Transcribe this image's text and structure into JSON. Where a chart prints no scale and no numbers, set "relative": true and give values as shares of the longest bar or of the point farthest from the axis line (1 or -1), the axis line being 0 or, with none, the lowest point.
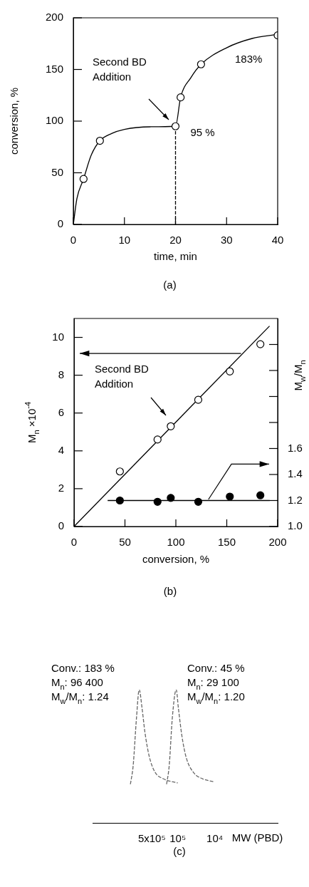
{
  "chart_data": [
    {
      "type": "scatter",
      "title": "(a)",
      "xlabel": "time, min",
      "ylabel": "conversion, %",
      "xlim": [
        0,
        40
      ],
      "xticks": [
        0,
        10,
        20,
        30,
        40
      ],
      "ylim": [
        0,
        200
      ],
      "yticks": [
        0,
        50,
        100,
        150,
        200
      ],
      "marker": "circle",
      "series": [
        {
          "type": "line",
          "marker": "none",
          "color": "#000000",
          "x": [
            0,
            0.7,
            2,
            3.5,
            5.2,
            7.5,
            10,
            15,
            20,
            21,
            23,
            25,
            30,
            35,
            40
          ],
          "values": [
            0,
            25,
            44,
            67,
            81,
            88,
            92,
            94.5,
            95,
            123,
            142,
            155,
            171,
            180,
            184
          ]
        },
        {
          "type": "line",
          "marker": "none",
          "line_style": "dashed",
          "color": "#000000",
          "x": [
            20,
            20
          ],
          "values": [
            0,
            95
          ]
        },
        {
          "color": "#ffffff",
          "x": [
            2,
            5.2,
            20,
            21,
            25,
            40
          ],
          "values": [
            44,
            81,
            95,
            123,
            155,
            183
          ]
        }
      ],
      "annotations": [
        "Second BD Addition",
        {
          "text": "95 %",
          "x": 20,
          "y": 95
        },
        {
          "text": "183%",
          "x": 40,
          "y": 183
        }
      ]
    },
    {
      "type": "scatter",
      "title": "(b)",
      "xlabel": "conversion, %",
      "ylabel": "M$_{n}$ ×10$^{-4}$",
      "y2label": "M$_{w}$/M$_{n}$",
      "xlim": [
        0,
        200
      ],
      "xticks": [
        0,
        50,
        100,
        150,
        200
      ],
      "ylim": [
        0,
        11
      ],
      "yticks": [
        0,
        2,
        4,
        6,
        8,
        10
      ],
      "y2lim": [
        1.0,
        2.6
      ],
      "y2ticks": [
        {
          "value": 1.0,
          "label": "1.0"
        },
        {
          "value": 1.2,
          "label": "1.2"
        },
        {
          "value": 1.4,
          "label": "1.4"
        },
        {
          "value": 1.6,
          "label": "1.6"
        },
        {
          "value": 1.8,
          "label": null
        },
        {
          "value": 2.0,
          "label": null
        },
        {
          "value": 2.2,
          "label": null
        },
        {
          "value": 2.4,
          "label": null
        }
      ],
      "marker": "circle",
      "series": [
        {
          "type": "line",
          "marker": "none",
          "color": "#000000",
          "x": [
            0,
            192
          ],
          "values": [
            0,
            10.6
          ]
        },
        {
          "type": "line",
          "marker": "none",
          "color": "#000000",
          "axis": "y2",
          "x": [
            33,
            192
          ],
          "values": [
            1.2,
            1.2
          ]
        },
        {
          "color": "#ffffff",
          "x": [
            45,
            82,
            95,
            122,
            153,
            183
          ],
          "values": [
            2.91,
            4.6,
            5.3,
            6.7,
            8.2,
            9.64
          ]
        },
        {
          "color": "#000000",
          "axis": "y2",
          "x": [
            45,
            82,
            95,
            122,
            153,
            183
          ],
          "values": [
            1.2,
            1.19,
            1.22,
            1.19,
            1.23,
            1.24
          ]
        }
      ],
      "annotations": [
        "Second BD Addition"
      ]
    },
    {
      "type": "line",
      "title": "(c)",
      "xlabel": "MW (PBD)",
      "relative": true,
      "log": "x",
      "xlim": [
        20000000,
        200
      ],
      "xticks": [
        {
          "value": 500000,
          "label": "5x10⁵"
        },
        {
          "value": 100000,
          "label": "10⁵"
        },
        {
          "value": 10000,
          "label": "10⁴"
        }
      ],
      "line_style": "dashed",
      "marker": "none",
      "series": [
        {
          "color": "#666666",
          "x": [
            1900000,
            1600000,
            1300000,
            1100000,
            920000,
            770000,
            590000,
            410000,
            240000,
            100000
          ],
          "values": [
            0.29,
            0.43,
            0.79,
            1.0,
            0.86,
            0.68,
            0.5,
            0.38,
            0.33,
            0.3
          ]
        },
        {
          "color": "#666666",
          "x": [
            200000,
            170000,
            140000,
            110000,
            96000,
            77000,
            59000,
            38000,
            21000,
            11000
          ],
          "values": [
            0.29,
            0.43,
            0.79,
            1.0,
            0.86,
            0.65,
            0.49,
            0.38,
            0.33,
            0.31
          ]
        }
      ],
      "annotations": [
        "Conv.: 183 %",
        "M$_{n}$: 96 400",
        "M$_{w}$/M$_{n}$: 1.24",
        "Conv.: 45 %",
        "M$_{n}$: 29 100",
        "M$_{w}$/M$_{n}$: 1.20"
      ]
    }
  ]
}
